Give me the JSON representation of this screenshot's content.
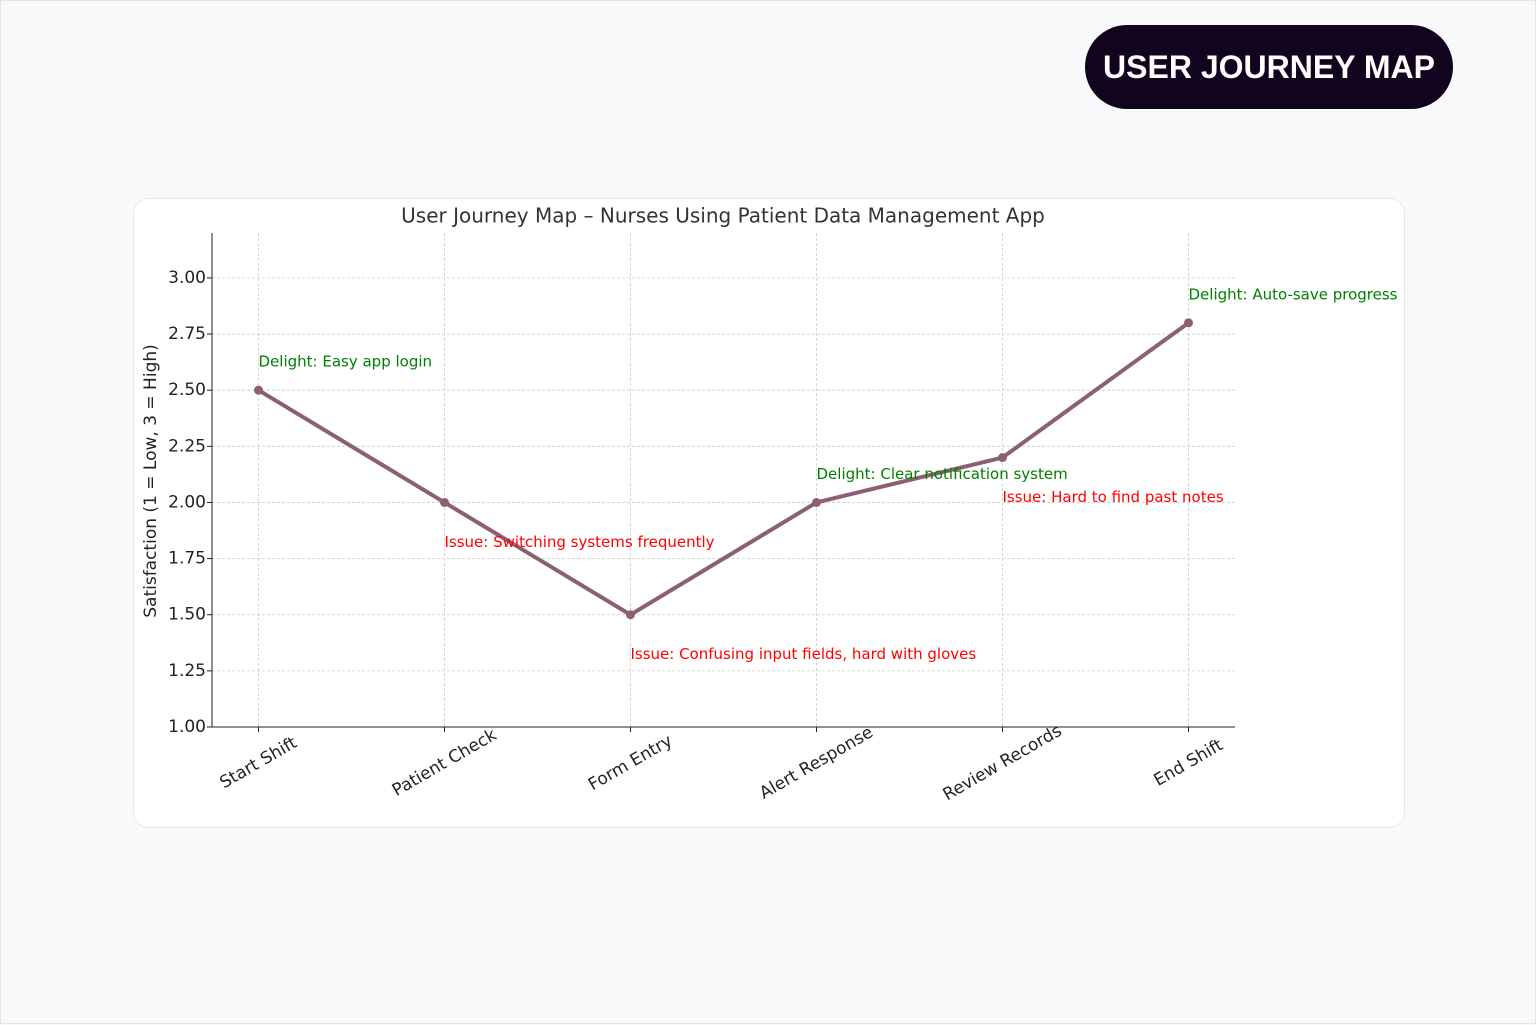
{
  "header": {
    "badge": "USER JOURNEY MAP"
  },
  "chart_data": {
    "type": "line",
    "title": "User Journey Map – Nurses Using Patient Data Management App",
    "y_label": "Satisfaction (1 = Low, 3 = High)",
    "categories": [
      "Start Shift",
      "Patient Check",
      "Form Entry",
      "Alert Response",
      "Review Records",
      "End Shift"
    ],
    "series": [
      {
        "name": "Satisfaction",
        "color": "#8c6070",
        "values": [
          2.5,
          2.0,
          1.5,
          2.0,
          2.2,
          2.8
        ]
      }
    ],
    "annotations": [
      "Delight: Easy app login",
      "Issue: Switching systems frequently",
      "Issue: Confusing input fields, hard with gloves",
      "Delight: Clear notification system",
      "Issue: Hard to find past notes",
      "Delight: Auto-save progress"
    ],
    "annotation_colors": [
      "green",
      "red",
      "red",
      "green",
      "red",
      "green"
    ],
    "ylim": [
      1,
      3.2
    ],
    "yticks": [
      {
        "value": 1,
        "label": "1.00"
      },
      {
        "value": 1.25,
        "label": "1.25"
      },
      {
        "value": 1.5,
        "label": "1.50"
      },
      {
        "value": 1.75,
        "label": "1.75"
      },
      {
        "value": 2,
        "label": "2.00"
      },
      {
        "value": 2.25,
        "label": "2.25"
      },
      {
        "value": 2.5,
        "label": "2.50"
      },
      {
        "value": 2.75,
        "label": "2.75"
      },
      {
        "value": 3,
        "label": "3.00"
      }
    ],
    "grid": true
  }
}
